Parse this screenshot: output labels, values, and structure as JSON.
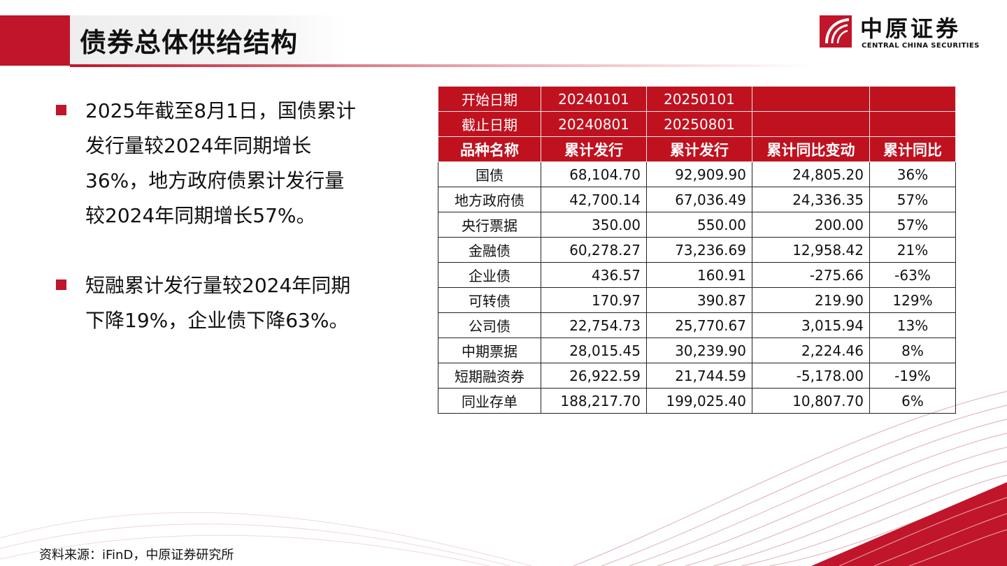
{
  "header": {
    "title": "债券总体供给结构",
    "logo_cn": "中原证券",
    "logo_en": "CENTRAL CHINA SECURITIES"
  },
  "bullets": [
    "2025年截至8月1日，国债累计发行量较2024年同期增长36%，地方政府债累计发行量较2024年同期增长57%。",
    "短融累计发行量较2024年同期下降19%，企业债下降63%。"
  ],
  "table": {
    "start_row": [
      "开始日期",
      "20240101",
      "20250101",
      "",
      ""
    ],
    "end_row": [
      "截止日期",
      "20240801",
      "20250801",
      "",
      ""
    ],
    "headers": [
      "品种名称",
      "累计发行",
      "累计发行",
      "累计同比变动",
      "累计同比"
    ],
    "rows": [
      [
        "国债",
        "68,104.70",
        "92,909.90",
        "24,805.20",
        "36%"
      ],
      [
        "地方政府债",
        "42,700.14",
        "67,036.49",
        "24,336.35",
        "57%"
      ],
      [
        "央行票据",
        "350.00",
        "550.00",
        "200.00",
        "57%"
      ],
      [
        "金融债",
        "60,278.27",
        "73,236.69",
        "12,958.42",
        "21%"
      ],
      [
        "企业债",
        "436.57",
        "160.91",
        "-275.66",
        "-63%"
      ],
      [
        "可转债",
        "170.97",
        "390.87",
        "219.90",
        "129%"
      ],
      [
        "公司债",
        "22,754.73",
        "25,770.67",
        "3,015.94",
        "13%"
      ],
      [
        "中期票据",
        "28,015.45",
        "30,239.90",
        "2,224.46",
        "8%"
      ],
      [
        "短期融资券",
        "26,922.59",
        "21,744.59",
        "-5,178.00",
        "-19%"
      ],
      [
        "同业存单",
        "188,217.70",
        "199,025.40",
        "10,807.70",
        "6%"
      ]
    ]
  },
  "footer": {
    "source": "资料来源：iFinD，中原证券研究所"
  },
  "colors": {
    "accent": "#c0152a",
    "header_fill": "#c0111f"
  }
}
